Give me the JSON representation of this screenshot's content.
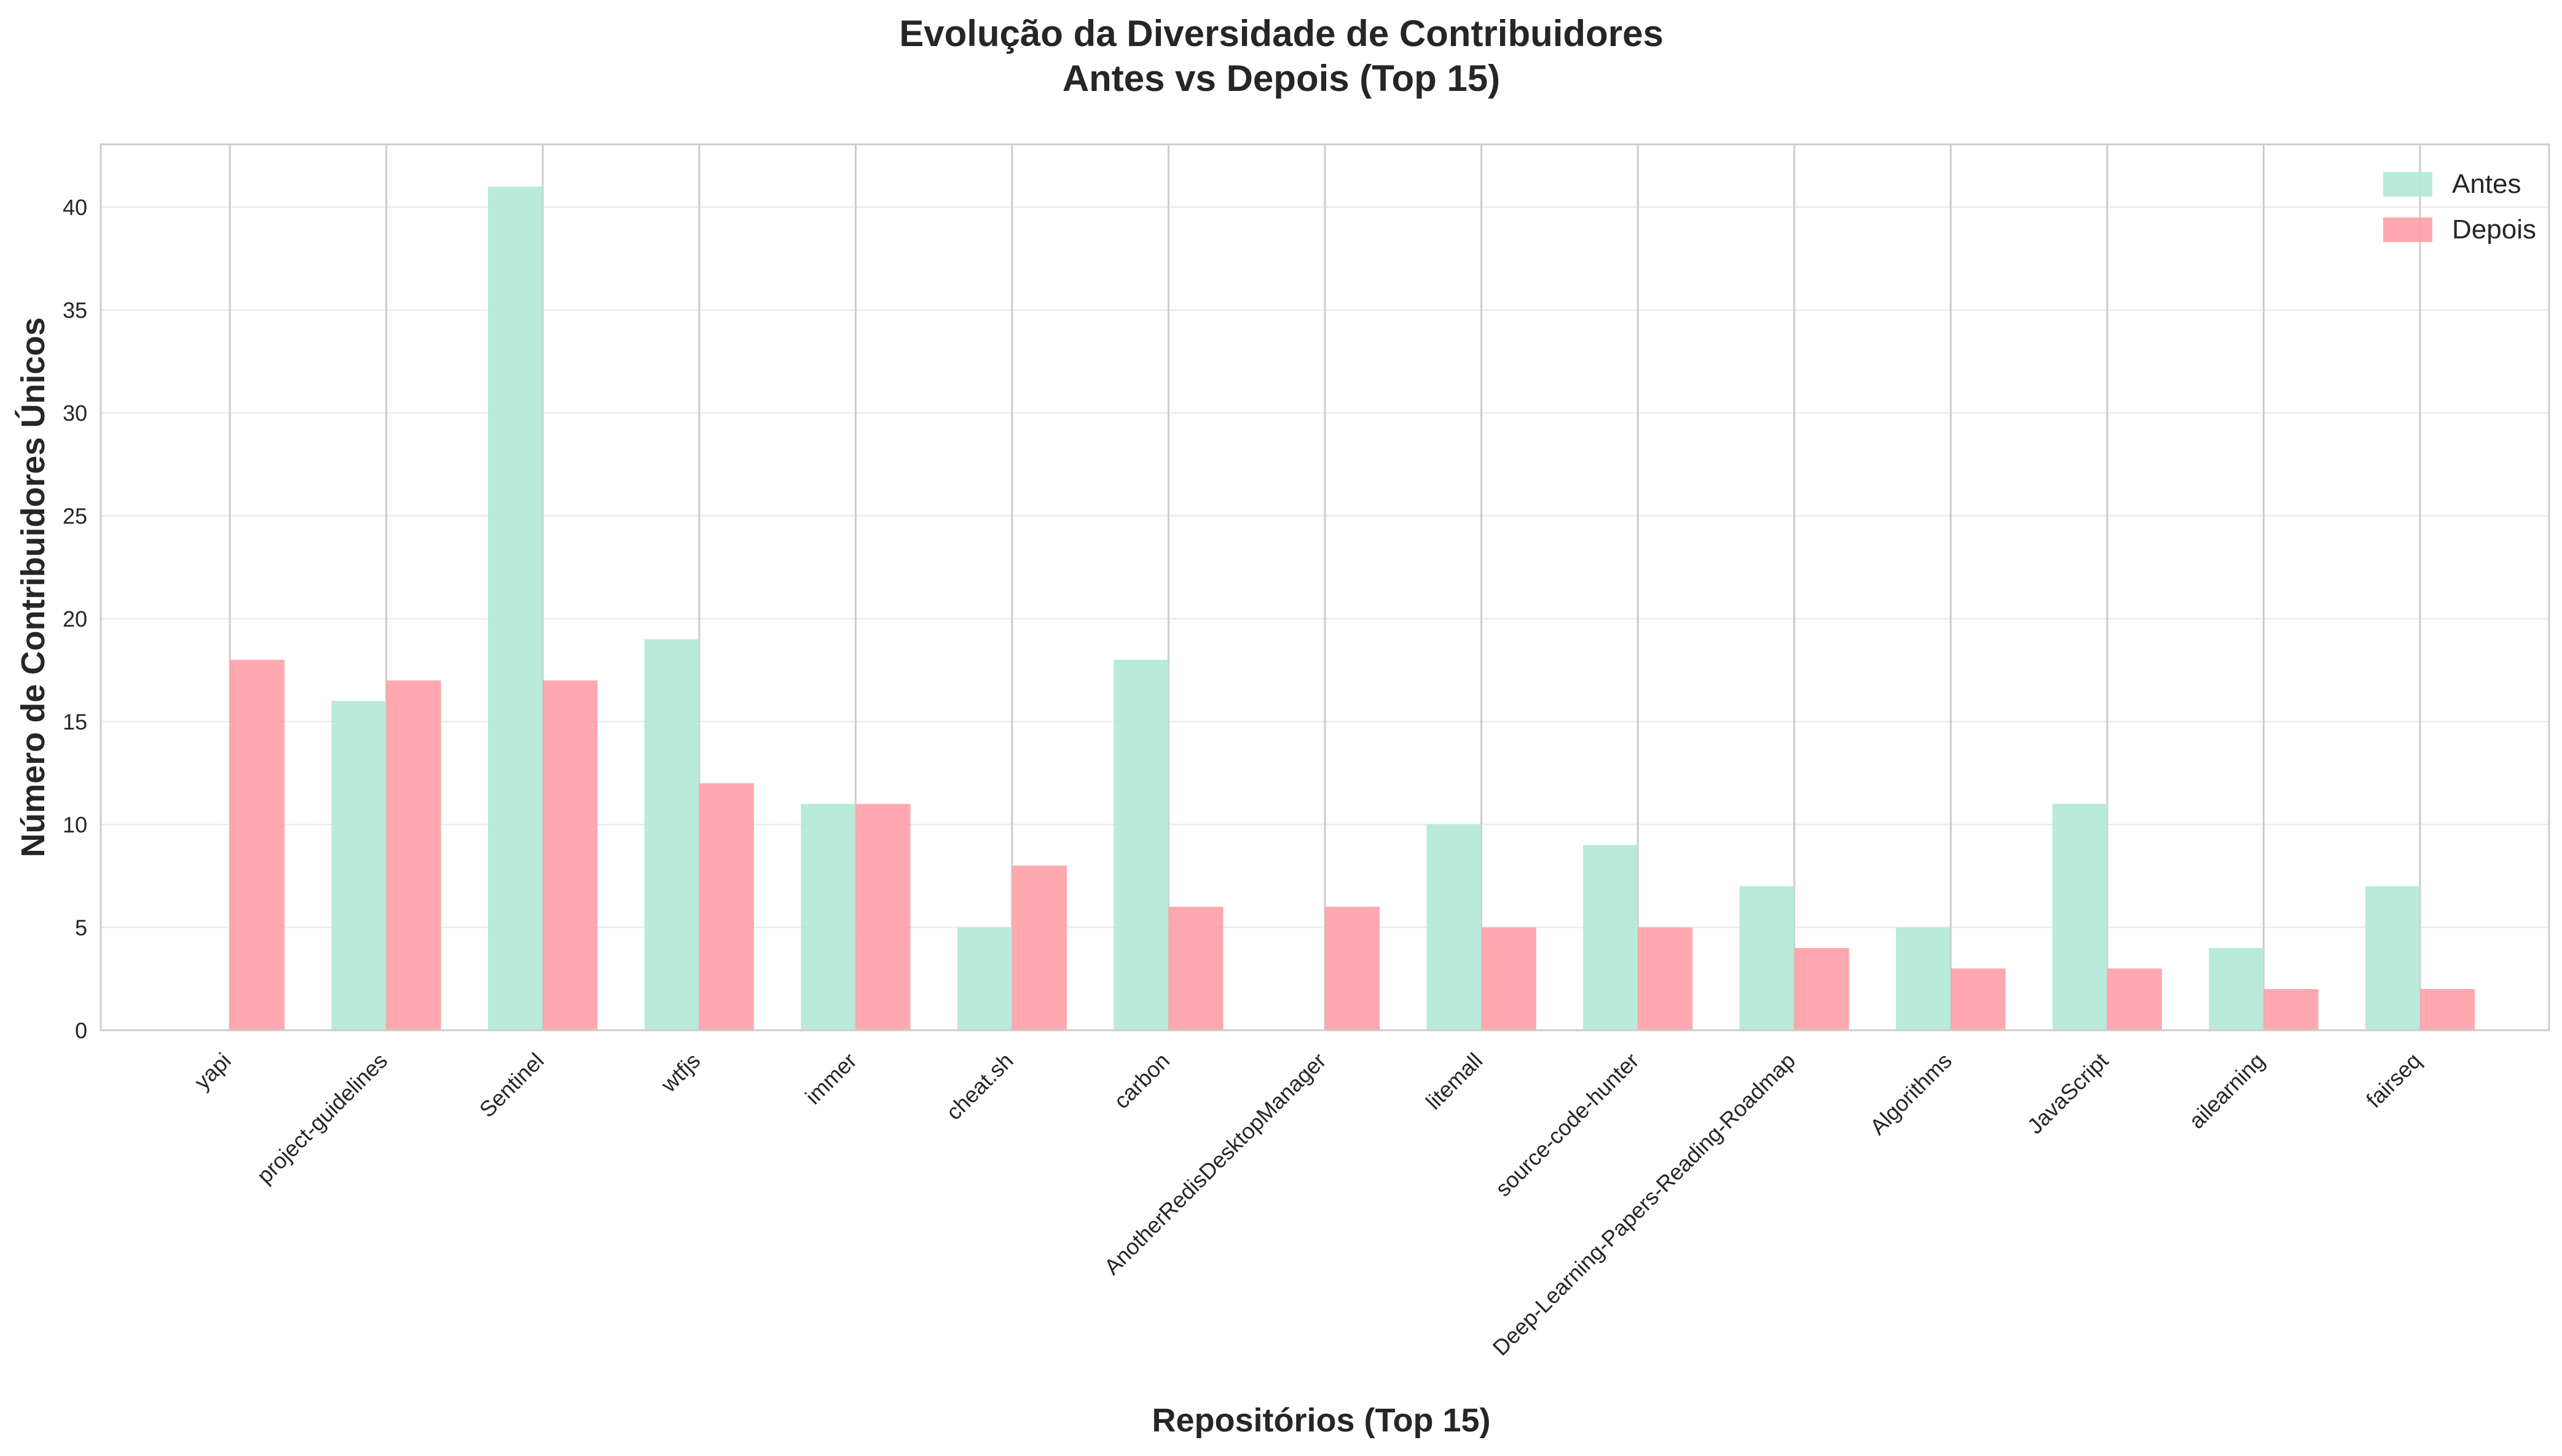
{
  "chart_data": {
    "type": "bar",
    "title": "Evolução da Diversidade de Contribuidores",
    "subtitle": "Antes vs Depois (Top 15)",
    "xlabel": "Repositórios (Top 15)",
    "ylabel": "Número de Contribuidores Únicos",
    "categories": [
      "yapi",
      "project-guidelines",
      "Sentinel",
      "wtfjs",
      "immer",
      "cheat.sh",
      "carbon",
      "AnotherRedisDesktopManager",
      "litemall",
      "source-code-hunter",
      "Deep-Learning-Papers-Reading-Roadmap",
      "Algorithms",
      "JavaScript",
      "ailearning",
      "fairseq"
    ],
    "series": [
      {
        "name": "Antes",
        "color": "#b3e8d6",
        "values": [
          0,
          16,
          41,
          19,
          11,
          5,
          18,
          0,
          10,
          9,
          7,
          5,
          11,
          4,
          7
        ]
      },
      {
        "name": "Depois",
        "color": "#ff9ea6",
        "values": [
          18,
          17,
          17,
          12,
          11,
          8,
          6,
          6,
          5,
          5,
          4,
          3,
          3,
          2,
          2
        ]
      }
    ],
    "ylim": [
      0,
      43.05
    ],
    "yticks": [
      0,
      5,
      10,
      15,
      20,
      25,
      30,
      35,
      40
    ],
    "grid": true,
    "legend_position": "top-right"
  }
}
